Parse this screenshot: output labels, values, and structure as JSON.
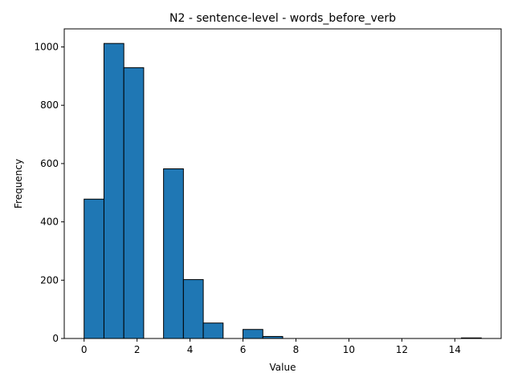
{
  "chart_data": {
    "type": "bar",
    "title": "N2 - sentence-level - words_before_verb",
    "xlabel": "Value",
    "ylabel": "Frequency",
    "xlim": [
      -0.75,
      15.75
    ],
    "ylim": [
      0,
      1062
    ],
    "xticks": [
      0,
      2,
      4,
      6,
      8,
      10,
      12,
      14
    ],
    "yticks": [
      0,
      200,
      400,
      600,
      800,
      1000
    ],
    "bin_edges": [
      0,
      0.75,
      1.5,
      2.25,
      3,
      3.75,
      4.5,
      5.25,
      6,
      6.75,
      7.5,
      8.25,
      9,
      9.75,
      10.5,
      11.25,
      12,
      12.75,
      13.5,
      14.25,
      15
    ],
    "values": [
      478,
      1012,
      929,
      0,
      582,
      202,
      53,
      0,
      31,
      7,
      0,
      0,
      0,
      0,
      0,
      0,
      0,
      0,
      0,
      2
    ],
    "bar_color": "#1f77b4",
    "edge_color": "#000000",
    "grid": false,
    "legend": "none"
  }
}
